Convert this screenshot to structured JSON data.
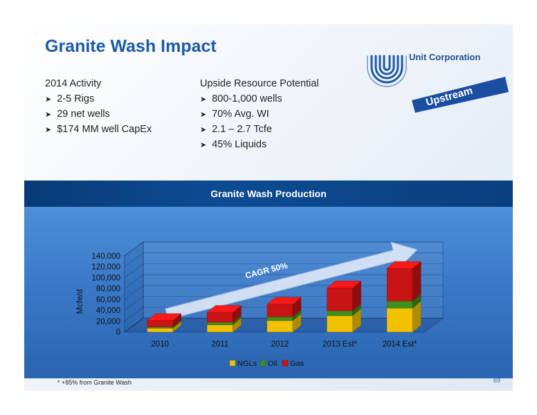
{
  "title": "Granite Wash Impact",
  "activity": {
    "heading": "2014 Activity",
    "items": [
      "2-5 Rigs",
      "29 net wells",
      "$174 MM well CapEx"
    ]
  },
  "upside": {
    "heading": "Upside Resource Potential",
    "items": [
      "800-1,000 wells",
      "70% Avg. WI",
      "2.1 – 2.7 Tcfe",
      "45% Liquids"
    ]
  },
  "logo": {
    "company": "Unit Corporation",
    "tag": "Upstream"
  },
  "footnote": "* +85% from Granite Wash",
  "page_number": "69",
  "colors": {
    "ngls": "#f2c200",
    "oil": "#3e8f1c",
    "gas": "#c81414",
    "title": "#1d5aa8"
  },
  "chart_data": {
    "type": "bar",
    "stacked": true,
    "three_d": true,
    "title": "Granite Wash Production",
    "ylabel": "Mcfe/d",
    "xlabel": "",
    "categories": [
      "2010",
      "2011",
      "2012",
      "2013 Est*",
      "2014 Est*"
    ],
    "series": [
      {
        "name": "NGLs",
        "values": [
          7000,
          13000,
          21000,
          30000,
          44000
        ]
      },
      {
        "name": "Oil",
        "values": [
          2500,
          5000,
          7000,
          9000,
          13000
        ]
      },
      {
        "name": "Gas",
        "values": [
          11500,
          18000,
          23000,
          42000,
          60000
        ]
      }
    ],
    "ylim": [
      0,
      140000
    ],
    "yticks": [
      "0",
      "20,000",
      "40,000",
      "60,000",
      "80,000",
      "100,000",
      "120,000",
      "140,000"
    ],
    "annotation": "CAGR 50%",
    "legend_position": "bottom",
    "grid": true
  }
}
